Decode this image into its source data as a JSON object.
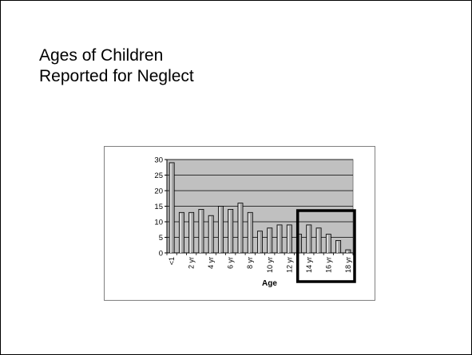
{
  "slide": {
    "title_line1": "Ages of Children",
    "title_line2": "Reported for Neglect"
  },
  "chart_data": {
    "type": "bar",
    "categories": [
      "<1",
      "1 yr",
      "2 yr",
      "3 yr",
      "4 yr",
      "5 yr",
      "6 yr",
      "7 yr",
      "8 yr",
      "9 yr",
      "10 yr",
      "11 yr",
      "12 yr",
      "13 yr",
      "14 yr",
      "15 yr",
      "16 yr",
      "17 yr",
      "18 yr"
    ],
    "values": [
      29,
      13,
      13,
      14,
      12,
      15,
      14,
      16,
      13,
      7,
      8,
      9,
      9,
      6,
      9,
      8,
      6,
      4,
      1
    ],
    "visible_tick_labels": [
      "<1",
      "2 yr",
      "4 yr",
      "6 yr",
      "8 yr",
      "10 yr",
      "12 yr",
      "14 yr",
      "16 yr",
      "18 yr"
    ],
    "y_ticks": [
      0,
      5,
      10,
      15,
      20,
      25,
      30
    ],
    "title": "",
    "xlabel": "Age",
    "ylabel": "",
    "ylim": [
      0,
      30
    ],
    "grid": "horizontal",
    "legend": "none",
    "highlight": {
      "from_category": "14 yr",
      "to_category": "18 yr"
    },
    "colors": {
      "plot_area": "#c0c0c0",
      "bar_fill": "#a6a6a6",
      "bar_highlight": "#e6e6e6",
      "bar_edge": "#000000",
      "grid": "#000000",
      "highlight_box": "#000000"
    }
  }
}
